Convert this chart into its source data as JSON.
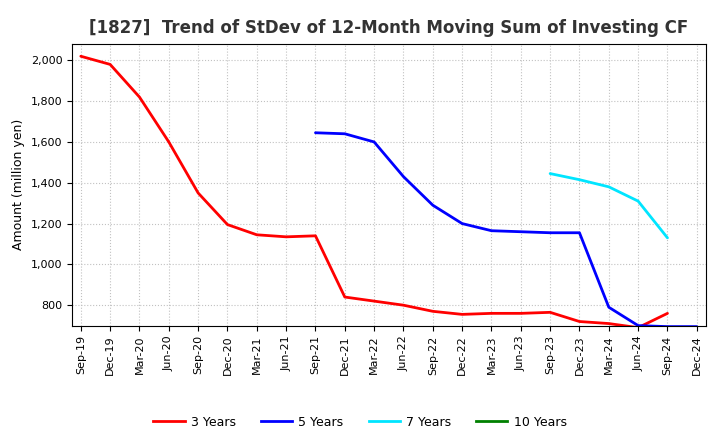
{
  "title": "[1827]  Trend of StDev of 12-Month Moving Sum of Investing CF",
  "ylabel": "Amount (million yen)",
  "background_color": "#ffffff",
  "grid_color": "#bbbbbb",
  "x_labels": [
    "Sep-19",
    "Dec-19",
    "Mar-20",
    "Jun-20",
    "Sep-20",
    "Dec-20",
    "Mar-21",
    "Jun-21",
    "Sep-21",
    "Dec-21",
    "Mar-22",
    "Jun-22",
    "Sep-22",
    "Dec-22",
    "Mar-23",
    "Jun-23",
    "Sep-23",
    "Dec-23",
    "Mar-24",
    "Jun-24",
    "Sep-24",
    "Dec-24"
  ],
  "series": {
    "3 Years": {
      "color": "#ff0000",
      "x_indices": [
        0,
        1,
        2,
        3,
        4,
        5,
        6,
        7,
        8,
        9,
        10,
        11,
        12,
        13,
        14,
        15,
        16,
        17,
        18,
        19,
        20
      ],
      "values": [
        2020,
        1980,
        1820,
        1600,
        1350,
        1195,
        1145,
        1135,
        1140,
        840,
        820,
        800,
        770,
        755,
        760,
        760,
        765,
        720,
        710,
        690,
        760
      ]
    },
    "5 Years": {
      "color": "#0000ff",
      "x_indices": [
        8,
        9,
        10,
        11,
        12,
        13,
        14,
        15,
        16,
        17,
        18,
        19,
        20,
        21
      ],
      "values": [
        1645,
        1640,
        1600,
        1430,
        1290,
        1200,
        1165,
        1160,
        1155,
        1155,
        790,
        700,
        695,
        695
      ]
    },
    "7 Years": {
      "color": "#00e5ff",
      "x_indices": [
        16,
        17,
        18,
        19,
        20
      ],
      "values": [
        1445,
        1415,
        1380,
        1310,
        1130
      ]
    },
    "10 Years": {
      "color": "#008000",
      "x_indices": [],
      "values": []
    }
  },
  "ylim": [
    700,
    2080
  ],
  "yticks": [
    800,
    1000,
    1200,
    1400,
    1600,
    1800,
    2000
  ],
  "title_fontsize": 12,
  "axis_fontsize": 9,
  "tick_fontsize": 8,
  "linewidth": 2.0
}
